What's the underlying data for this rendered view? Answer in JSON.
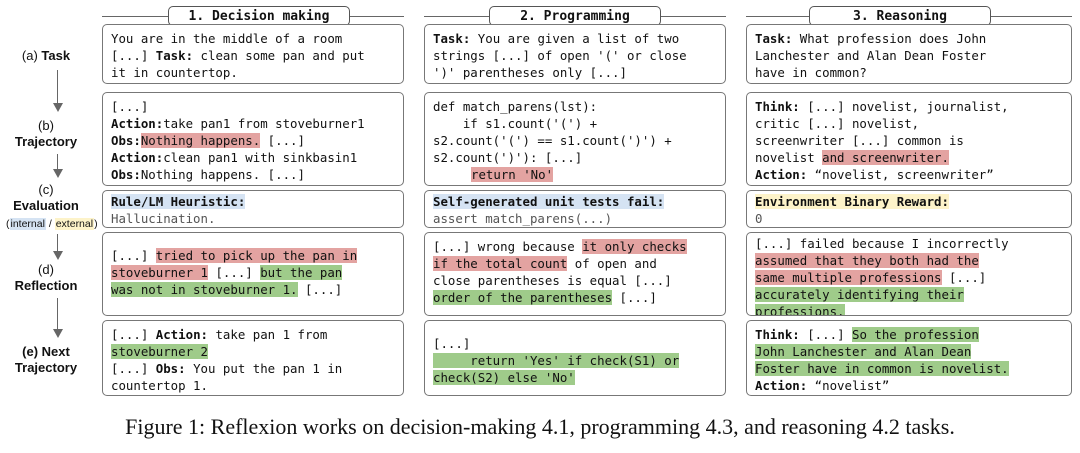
{
  "columns": [
    {
      "label": "1. Decision making"
    },
    {
      "label": "2. Programming"
    },
    {
      "label": "3. Reasoning"
    }
  ],
  "rows": {
    "task": {
      "prefix": "(a)",
      "name": "Task"
    },
    "trajectory": {
      "prefix": "(b)",
      "name": "Trajectory"
    },
    "evaluation": {
      "prefix": "(c)",
      "name": "Evaluation",
      "internal": "internal",
      "sep": " / ",
      "external": "external"
    },
    "reflection": {
      "prefix": "(d)",
      "name": "Reflection"
    },
    "next": {
      "prefix": "(e) Next",
      "name": "Trajectory"
    }
  },
  "task": {
    "dm": {
      "l1": "You are in the middle of a room",
      "l2a": "[...] ",
      "l2b": "Task:",
      "l2c": " clean some pan and put",
      "l3": "it in countertop."
    },
    "prog": {
      "l1a": "Task:",
      "l1b": " You are given a list of two",
      "l2": "strings [...] of open '(' or close",
      "l3": "')' parentheses only [...]"
    },
    "rea": {
      "l1a": "Task:",
      "l1b": " What profession does John",
      "l2": "Lanchester and Alan Dean Foster",
      "l3": "have in common?"
    }
  },
  "trajectory": {
    "dm": {
      "l1": "[...]",
      "l2a": "Action:",
      "l2b": "take pan1 from stoveburner1",
      "l3a": "Obs:",
      "l3b": "Nothing happens.",
      "l3c": " [...]",
      "l4a": "Action:",
      "l4b": "clean pan1 with sinkbasin1",
      "l5a": "Obs:",
      "l5b": "Nothing happens. [...]"
    },
    "prog": {
      "l1": "def match_parens(lst):",
      "l2": "    if s1.count('(') +",
      "l3": "s2.count('(') == s1.count(')') +",
      "l4": "s2.count(')'): [...]",
      "l5": "return 'No'"
    },
    "rea": {
      "l1a": "Think:",
      "l1b": " [...] novelist, journalist,",
      "l2": "critic [...] novelist,",
      "l3": "screenwriter [...] common is",
      "l4a": "novelist ",
      "l4b": "and screenwriter.",
      "l5a": "Action:",
      "l5b": " “novelist, screenwriter”"
    }
  },
  "evaluation": {
    "dm": {
      "title": "Rule/LM Heuristic:",
      "value": "Hallucination."
    },
    "prog": {
      "title": "Self-generated unit tests fail:",
      "value": "assert match_parens(...)"
    },
    "rea": {
      "title": "Environment Binary Reward:",
      "value": "0"
    }
  },
  "reflection": {
    "dm": {
      "l1a": "[...] ",
      "l1b": "tried to pick up the pan in",
      "l2a": "stoveburner 1",
      "l2b": " [...] ",
      "l2c": "but the pan",
      "l3a": "was not in stoveburner 1.",
      "l3b": " [...]"
    },
    "prog": {
      "l1a": "[...] wrong because ",
      "l1b": "it only checks",
      "l2a": "if the total count",
      "l2b": " of open and",
      "l3": "close parentheses is equal [...]",
      "l4a": "order of the parentheses",
      "l4b": " [...]"
    },
    "rea": {
      "l1": "[...] failed because I incorrectly",
      "l2": "assumed that they both had the",
      "l3a": "same multiple professions",
      "l3b": " [...]",
      "l4": "accurately identifying their",
      "l5": "professions."
    }
  },
  "next": {
    "dm": {
      "l1a": "[...] ",
      "l1b": "Action:",
      "l1c": " take pan 1 from",
      "l2": "stoveburner 2",
      "l3a": "[...] ",
      "l3b": "Obs:",
      "l3c": " You put the pan 1 in",
      "l4": "countertop 1."
    },
    "prog": {
      "l1": "[...]",
      "l2": "     return 'Yes' if check(S1) or",
      "l3": "check(S2) else 'No'"
    },
    "rea": {
      "l1a": "Think:",
      "l1b": " [...] ",
      "l1c": "So the profession",
      "l2": "John Lanchester and Alan Dean",
      "l3": "Foster have in common is novelist.",
      "l4a": "Action:",
      "l4b": " “novelist”"
    }
  },
  "caption": "Figure 1: Reflexion works on decision-making 4.1, programming 4.3, and reasoning 4.2 tasks."
}
